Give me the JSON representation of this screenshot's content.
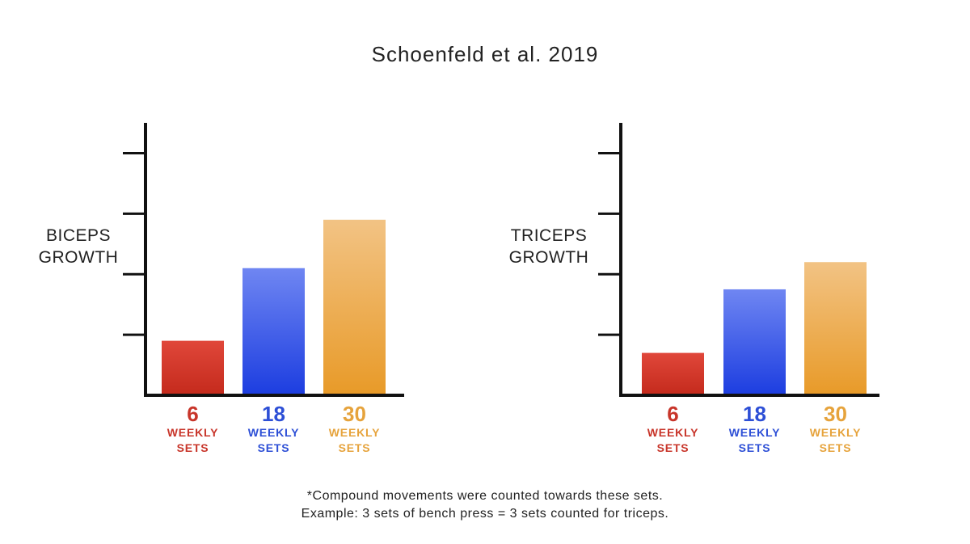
{
  "title": "Schoenfeld et al. 2019",
  "chart_data": [
    {
      "type": "bar",
      "ylabel_lines": [
        "BICEPS",
        "GROWTH"
      ],
      "ylim": [
        0,
        4.5
      ],
      "ticks": [
        1,
        2,
        3,
        4
      ],
      "categories": [
        {
          "value_label": "6",
          "line1": "WEEKLY",
          "line2": "SETS"
        },
        {
          "value_label": "18",
          "line1": "WEEKLY",
          "line2": "SETS"
        },
        {
          "value_label": "30",
          "line1": "WEEKLY",
          "line2": "SETS"
        }
      ],
      "values": [
        0.9,
        2.1,
        2.9
      ]
    },
    {
      "type": "bar",
      "ylabel_lines": [
        "TRICEPS",
        "GROWTH"
      ],
      "ylim": [
        0,
        4.5
      ],
      "ticks": [
        1,
        2,
        3,
        4
      ],
      "categories": [
        {
          "value_label": "6",
          "line1": "WEEKLY",
          "line2": "SETS"
        },
        {
          "value_label": "18",
          "line1": "WEEKLY",
          "line2": "SETS"
        },
        {
          "value_label": "30",
          "line1": "WEEKLY",
          "line2": "SETS"
        }
      ],
      "values": [
        0.7,
        1.75,
        2.2
      ]
    }
  ],
  "colors": {
    "red_top": "#e0473a",
    "red_bottom": "#c42a1c",
    "blue_top": "#6f86f2",
    "blue_bottom": "#1c3de0",
    "orange_top": "#f2c384",
    "orange_bottom": "#e89a28",
    "red_text": "#c8352a",
    "blue_text": "#2d4fd6",
    "orange_text": "#e6a33c"
  },
  "footnote": {
    "line1": "*Compound movements were counted towards these sets.",
    "line2": "Example: 3 sets of bench press = 3 sets counted for triceps."
  }
}
